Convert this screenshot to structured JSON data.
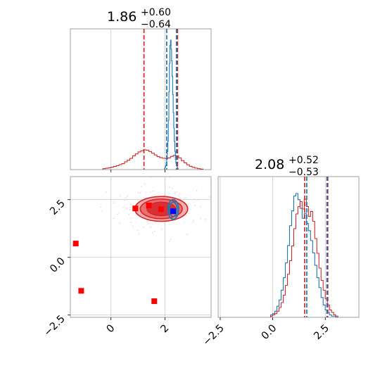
{
  "chart_data": {
    "type": "corner",
    "colors": {
      "red": "#d62728",
      "blue": "#1f77b4",
      "marker_red": "#ff0000",
      "marker_blue": "#0000ff"
    },
    "grid": true,
    "panels": [
      {
        "id": "marginal_1",
        "type": "histogram",
        "title": {
          "median": "1.86",
          "plus": "+0.60",
          "minus": "−0.64"
        },
        "xlim": [
          -1.5,
          3.7
        ],
        "red_quantile_lines": [
          1.22,
          2.46
        ],
        "blue_quantile_lines": [
          2.06,
          2.42
        ],
        "red_bins": {
          "start": -0.3,
          "width": 0.1,
          "heights": [
            0.6,
            0.9,
            1.2,
            1.6,
            2.1,
            2.6,
            3.3,
            4.0,
            5.2,
            6.3,
            7.5,
            9.2,
            10.5,
            11.8,
            12.6,
            13.2,
            13.0,
            12.1,
            11.0,
            9.8,
            8.7,
            8.0,
            7.6,
            7.4,
            7.8,
            8.8,
            9.5,
            9.2,
            7.8,
            6.0,
            4.5,
            3.2,
            2.2,
            1.5,
            1.0,
            0.6,
            0.3
          ]
        },
        "blue_bins": {
          "start": 1.98,
          "width": 0.02,
          "heights": [
            1,
            2,
            3,
            5,
            8,
            14,
            22,
            38,
            60,
            82,
            96,
            100,
            93,
            84,
            72,
            58,
            44,
            32,
            22,
            14,
            8,
            5,
            3,
            2,
            1
          ]
        }
      },
      {
        "id": "joint",
        "type": "contour_scatter",
        "xlim": [
          -1.5,
          3.7
        ],
        "ylim": [
          -2.6,
          3.5
        ],
        "red_contours": [
          {
            "cx": 1.86,
            "cy": 2.1,
            "rx": 1.95,
            "ry": 1.08
          },
          {
            "cx": 1.86,
            "cy": 2.1,
            "rx": 1.55,
            "ry": 0.85
          },
          {
            "cx": 1.86,
            "cy": 2.1,
            "rx": 1.05,
            "ry": 0.58
          }
        ],
        "blue_contours": [
          {
            "cx": 2.3,
            "cy": 2.08,
            "rx": 0.4,
            "ry": 0.85
          },
          {
            "cx": 2.3,
            "cy": 2.08,
            "rx": 0.28,
            "ry": 0.62
          }
        ],
        "red_markers": [
          {
            "x": 0.9,
            "y": 2.12
          },
          {
            "x": 1.4,
            "y": 2.25
          },
          {
            "x": 1.85,
            "y": 2.08
          },
          {
            "x": -1.3,
            "y": 0.6
          },
          {
            "x": -1.1,
            "y": -1.45
          },
          {
            "x": 1.6,
            "y": -1.9
          }
        ],
        "blue_markers": [
          {
            "x": 2.3,
            "y": 2.0
          }
        ]
      },
      {
        "id": "marginal_2",
        "type": "histogram",
        "title": {
          "median": "2.08",
          "plus": "+0.52",
          "minus": "−0.53"
        },
        "xlim": [
          -2.6,
          4.1
        ],
        "red_quantile_lines": [
          1.52,
          2.62
        ],
        "blue_quantile_lines": [
          1.62,
          2.58
        ],
        "red_bins": {
          "start": -0.1,
          "width": 0.1,
          "heights": [
            1,
            2,
            3,
            5,
            8,
            12,
            18,
            26,
            35,
            46,
            58,
            72,
            84,
            90,
            94,
            88,
            96,
            90,
            82,
            86,
            78,
            64,
            52,
            40,
            30,
            22,
            15,
            10,
            6,
            4,
            2,
            1
          ]
        },
        "blue_bins": {
          "start": -0.1,
          "width": 0.1,
          "heights": [
            2,
            3,
            5,
            9,
            14,
            22,
            32,
            44,
            58,
            74,
            86,
            98,
            100,
            95,
            88,
            80,
            84,
            76,
            70,
            62,
            52,
            42,
            32,
            24,
            16,
            10,
            6,
            4,
            2,
            1,
            1,
            0
          ]
        }
      }
    ],
    "x_ticks_col1": [
      0,
      2
    ],
    "x_tick_labels_col1": [
      "0",
      "2"
    ],
    "y_ticks_row2": [
      -2.5,
      0.0,
      2.5
    ],
    "y_tick_labels_row2": [
      "−2.5",
      "0.0",
      "2.5"
    ],
    "x_ticks_col2": [
      -2.5,
      0.0,
      2.5
    ],
    "x_tick_labels_col2": [
      "−2.5",
      "0.0",
      "2.5"
    ]
  }
}
